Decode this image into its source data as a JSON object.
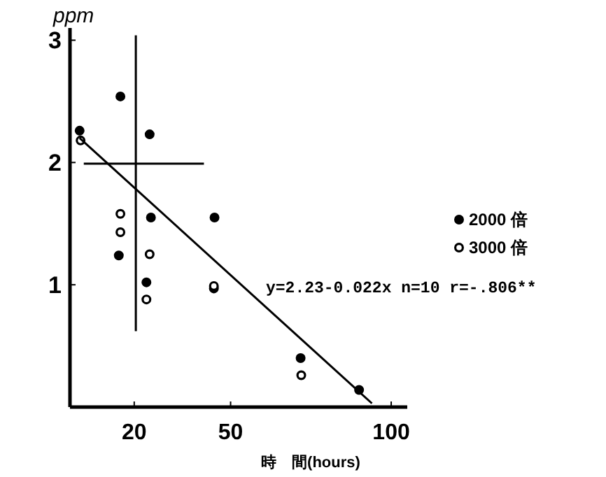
{
  "chart_data": {
    "type": "scatter",
    "xlabel": "時　間(hours)",
    "ylabel": "ppm",
    "xlim": [
      0,
      105
    ],
    "ylim": [
      0,
      3.1
    ],
    "xticks": [
      20,
      50,
      100
    ],
    "yticks": [
      1,
      2,
      3
    ],
    "grid": false,
    "legend": "right",
    "marker": "circle",
    "series": [
      {
        "name": "2000 倍",
        "color": "#000000",
        "x": [
          3,
          15.7,
          24.8,
          25.2,
          45,
          15.2,
          23.8,
          44.8,
          71.8,
          90
        ],
        "values": [
          2.26,
          2.54,
          2.23,
          1.55,
          1.55,
          1.24,
          1.02,
          0.97,
          0.4,
          0.14
        ]
      },
      {
        "name": "3000 倍",
        "color": "#ffffff",
        "x": [
          3.3,
          15.7,
          15.7,
          24.8,
          23.8,
          44.8,
          72
        ],
        "values": [
          2.18,
          1.58,
          1.43,
          1.25,
          0.88,
          0.99,
          0.26
        ]
      },
      {
        "type": "line",
        "marker": "none",
        "color": "#000000",
        "x": [
          3,
          94
        ],
        "values": [
          2.2,
          0.03
        ]
      },
      {
        "type": "line",
        "marker": "none",
        "color": "#000000",
        "x": [
          20.5,
          20.5
        ],
        "values": [
          0.62,
          3.04
        ]
      },
      {
        "type": "line",
        "marker": "none",
        "color": "#000000",
        "x": [
          4.3,
          41.7
        ],
        "values": [
          1.99,
          1.99
        ]
      }
    ],
    "annotations": [
      "y=2.23-0.022x n=10 r=-.806**"
    ]
  }
}
